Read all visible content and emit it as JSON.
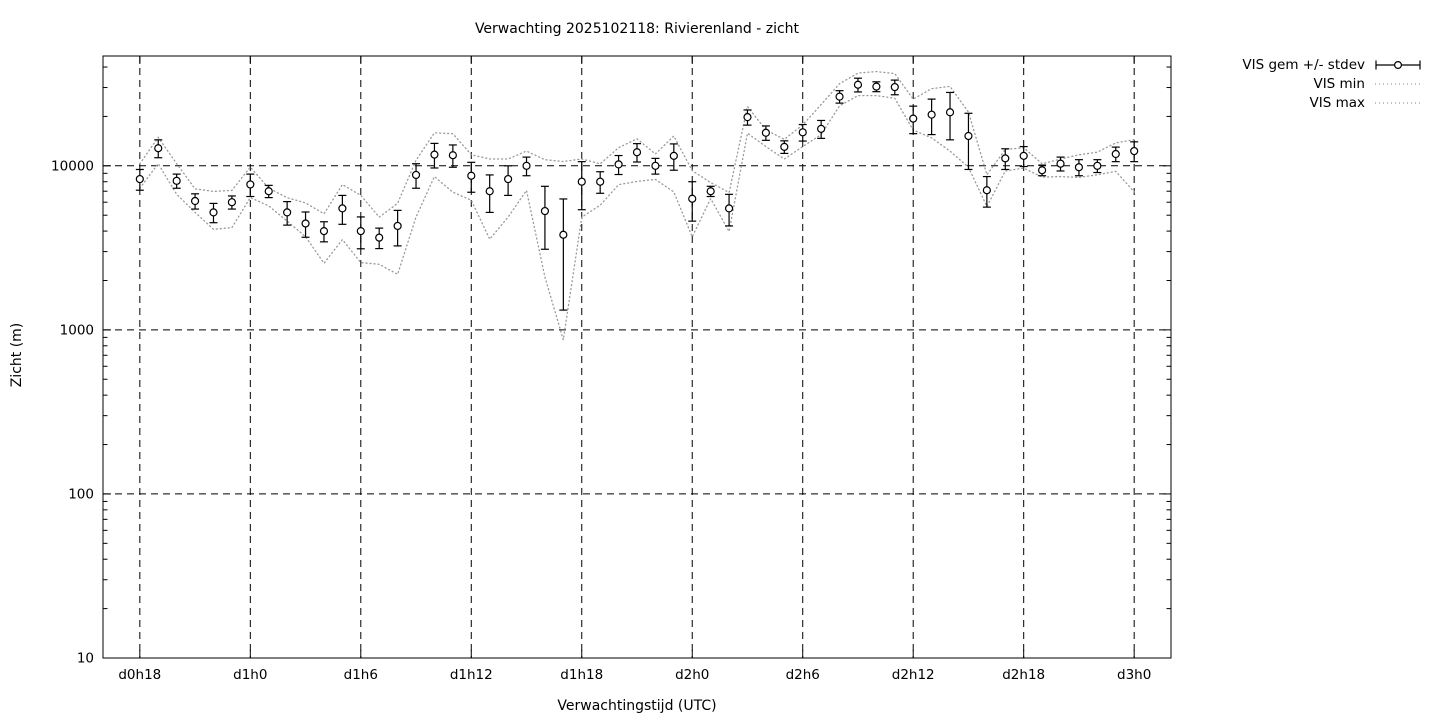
{
  "page": {
    "background": "#ffffff"
  },
  "chart_data": {
    "type": "line",
    "title": "Verwachting 2025102118: Rivierenland - zicht",
    "xlabel": "Verwachtingstijd (UTC)",
    "ylabel": "Zicht (m)",
    "y_scale": "log",
    "ylim": [
      10,
      46700
    ],
    "x_hour_range": [
      -2,
      56
    ],
    "grid": true,
    "legend_position": "outside-top-right",
    "colors": {
      "mean": "#000000",
      "minmax_dotted": "#999999",
      "grid": "#000000"
    },
    "y_ticks": [
      {
        "value": 10,
        "label": "10"
      },
      {
        "value": 100,
        "label": "100"
      },
      {
        "value": 1000,
        "label": "1000"
      },
      {
        "value": 10000,
        "label": "10000"
      }
    ],
    "x_ticks": [
      {
        "hour": 0,
        "label": "d0h18"
      },
      {
        "hour": 6,
        "label": "d1h0"
      },
      {
        "hour": 12,
        "label": "d1h6"
      },
      {
        "hour": 18,
        "label": "d1h12"
      },
      {
        "hour": 24,
        "label": "d1h18"
      },
      {
        "hour": 30,
        "label": "d2h0"
      },
      {
        "hour": 36,
        "label": "d2h6"
      },
      {
        "hour": 42,
        "label": "d2h12"
      },
      {
        "hour": 48,
        "label": "d2h18"
      },
      {
        "hour": 54,
        "label": "d3h0"
      }
    ],
    "start_hour": 0,
    "step_hours": 1,
    "series": [
      {
        "name": "VIS gem +/- stdev",
        "type": "errorbar",
        "marker": "open-circle",
        "mean": [
          8300,
          12800,
          8100,
          6100,
          5200,
          6000,
          7700,
          7000,
          5200,
          4450,
          4000,
          5500,
          4000,
          3650,
          4300,
          8800,
          11700,
          11600,
          8700,
          7000,
          8300,
          10000,
          5300,
          3800,
          8000,
          8000,
          10200,
          12100,
          10000,
          11500,
          6300,
          7000,
          5500,
          19800,
          15900,
          13050,
          16000,
          16800,
          26400,
          31200,
          30400,
          30200,
          19400,
          20500,
          21200,
          15200,
          7100,
          11100,
          11500,
          9400,
          10300,
          9800,
          10000,
          11800,
          12300
        ],
        "stdev": [
          1200,
          1600,
          800,
          650,
          700,
          550,
          1200,
          600,
          850,
          780,
          560,
          1100,
          880,
          520,
          1050,
          1500,
          2000,
          1800,
          1800,
          1800,
          1700,
          1300,
          2200,
          2480,
          2600,
          1200,
          1350,
          1550,
          1100,
          2100,
          1700,
          500,
          1200,
          2100,
          1600,
          1150,
          1850,
          2100,
          2300,
          3000,
          2100,
          3100,
          3700,
          5000,
          6800,
          5700,
          1500,
          1600,
          1600,
          700,
          1000,
          1100,
          900,
          1200,
          1700
        ]
      },
      {
        "name": "VIS min",
        "type": "dotted-line",
        "values": [
          7300,
          10300,
          6700,
          5200,
          4100,
          4200,
          6400,
          5700,
          4600,
          3700,
          2550,
          3550,
          2570,
          2510,
          2180,
          4870,
          8600,
          6900,
          6160,
          3570,
          4870,
          7080,
          2100,
          870,
          4870,
          5750,
          7670,
          8030,
          8260,
          6930,
          3690,
          6300,
          3980,
          15800,
          13100,
          11000,
          13100,
          15500,
          23200,
          26800,
          26800,
          25800,
          16500,
          14800,
          12300,
          9800,
          5650,
          9300,
          9680,
          8530,
          8600,
          8500,
          8810,
          9250,
          6930
        ]
      },
      {
        "name": "VIS max",
        "type": "dotted-line",
        "values": [
          10280,
          14900,
          10300,
          7230,
          6980,
          7080,
          9820,
          7300,
          6390,
          5940,
          5100,
          7680,
          6600,
          4870,
          5900,
          10800,
          15900,
          15700,
          11670,
          11000,
          11000,
          12300,
          10900,
          10620,
          11000,
          10280,
          12900,
          14600,
          11800,
          15200,
          9350,
          7900,
          6880,
          23000,
          16520,
          14500,
          17760,
          23600,
          31700,
          36800,
          37500,
          36500,
          25500,
          29500,
          30500,
          21300,
          8810,
          12570,
          12900,
          10280,
          11000,
          11670,
          12110,
          13790,
          14450
        ]
      }
    ]
  }
}
